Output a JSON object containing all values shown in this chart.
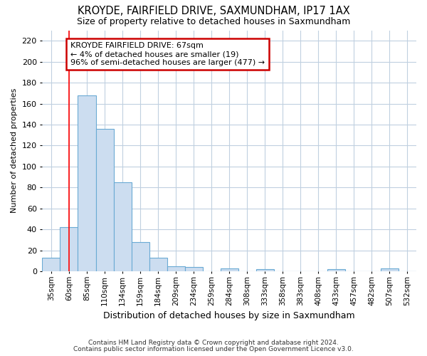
{
  "title": "KROYDE, FAIRFIELD DRIVE, SAXMUNDHAM, IP17 1AX",
  "subtitle": "Size of property relative to detached houses in Saxmundham",
  "xlabel": "Distribution of detached houses by size in Saxmundham",
  "ylabel": "Number of detached properties",
  "categories": [
    "35sqm",
    "60sqm",
    "85sqm",
    "110sqm",
    "134sqm",
    "159sqm",
    "184sqm",
    "209sqm",
    "234sqm",
    "259sqm",
    "284sqm",
    "308sqm",
    "333sqm",
    "358sqm",
    "383sqm",
    "408sqm",
    "433sqm",
    "457sqm",
    "482sqm",
    "507sqm",
    "532sqm"
  ],
  "values": [
    13,
    42,
    168,
    136,
    85,
    28,
    13,
    5,
    4,
    0,
    3,
    0,
    2,
    0,
    0,
    0,
    2,
    0,
    0,
    3,
    0
  ],
  "bar_color": "#ccddf0",
  "bar_edge_color": "#6aaad4",
  "grid_color": "#c0d0e0",
  "background_color": "#ffffff",
  "red_line_x": 1.0,
  "annotation_text": "KROYDE FAIRFIELD DRIVE: 67sqm\n← 4% of detached houses are smaller (19)\n96% of semi-detached houses are larger (477) →",
  "annotation_box_color": "#ffffff",
  "annotation_box_edge": "#cc0000",
  "footer1": "Contains HM Land Registry data © Crown copyright and database right 2024.",
  "footer2": "Contains public sector information licensed under the Open Government Licence v3.0.",
  "ylim": [
    0,
    230
  ],
  "yticks": [
    0,
    20,
    40,
    60,
    80,
    100,
    120,
    140,
    160,
    180,
    200,
    220
  ]
}
